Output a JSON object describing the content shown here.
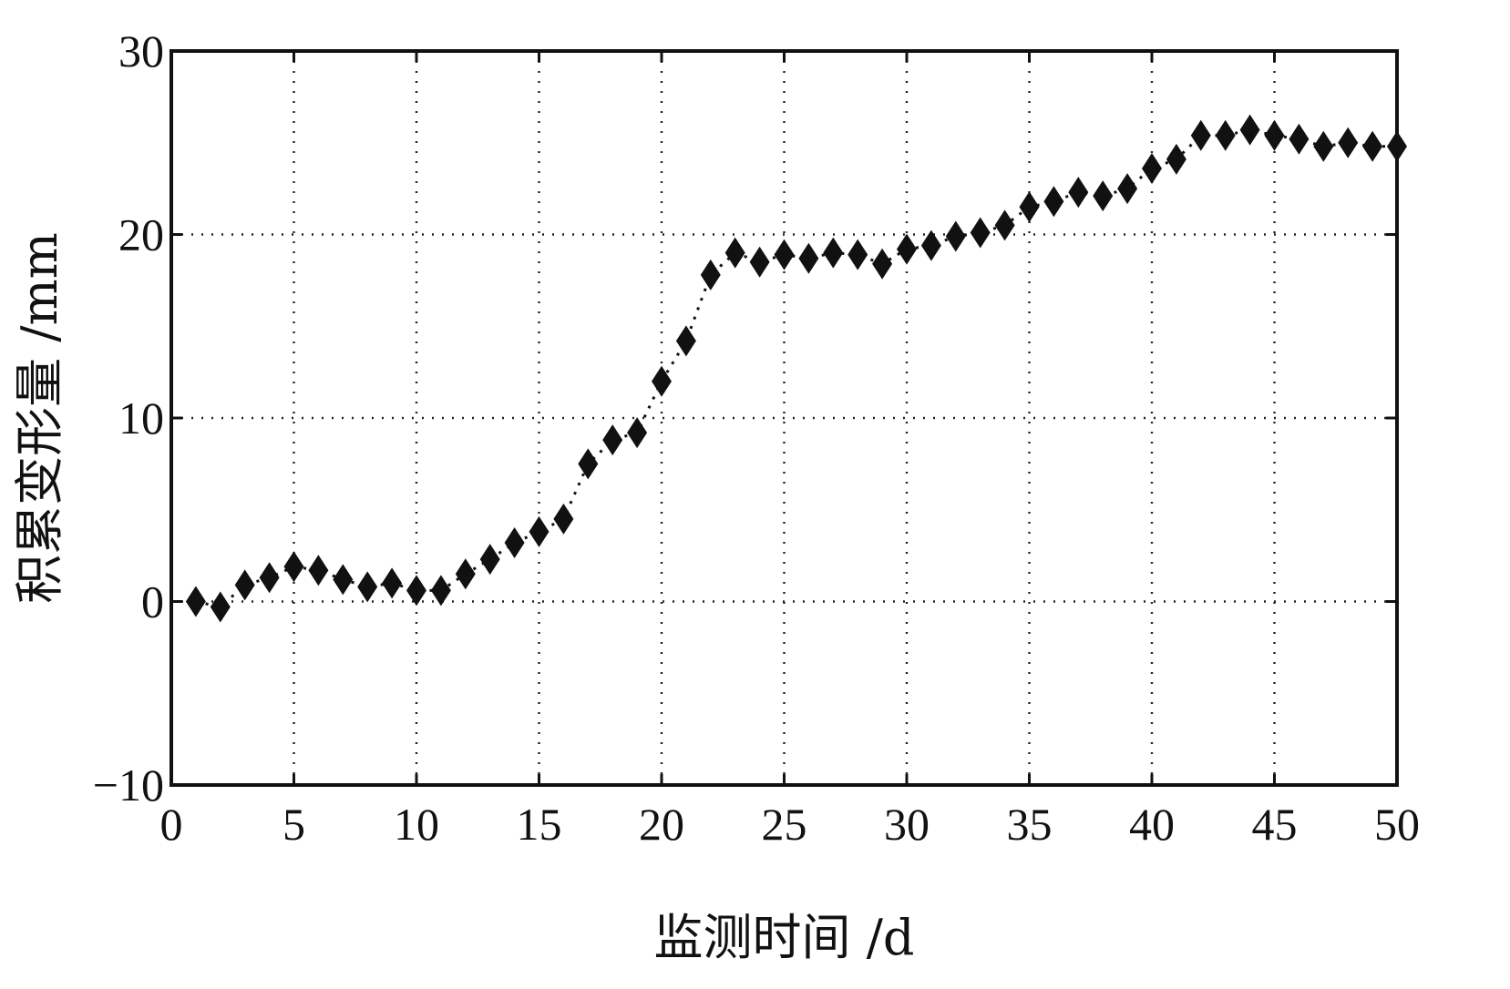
{
  "chart_data": {
    "type": "line",
    "title": "",
    "xlabel": "监测时间 /d",
    "ylabel": "积累变形量 /mm",
    "xlim": [
      0,
      50
    ],
    "ylim": [
      -10,
      30
    ],
    "xticks": [
      0,
      5,
      10,
      15,
      20,
      25,
      30,
      35,
      40,
      45,
      50
    ],
    "yticks": [
      -10,
      0,
      10,
      20,
      30
    ],
    "xtick_labels": [
      "0",
      "5",
      "10",
      "15",
      "20",
      "25",
      "30",
      "35",
      "40",
      "45",
      "50"
    ],
    "ytick_labels": [
      "−10",
      "0",
      "10",
      "20",
      "30"
    ],
    "grid": true,
    "legend": "none",
    "marker": "diamond",
    "line_style": "dotted",
    "color": "#111111",
    "series": [
      {
        "x": [
          1,
          2,
          3,
          4,
          5,
          6,
          7,
          8,
          9,
          10,
          11,
          12,
          13,
          14,
          15,
          16,
          17,
          18,
          19,
          20,
          21,
          22,
          23,
          24,
          25,
          26,
          27,
          28,
          29,
          30,
          31,
          32,
          33,
          34,
          35,
          36,
          37,
          38,
          39,
          40,
          41,
          42,
          43,
          44,
          45,
          46,
          47,
          48,
          49,
          50
        ],
        "values": [
          0.0,
          -0.3,
          0.9,
          1.3,
          1.9,
          1.7,
          1.2,
          0.8,
          1.0,
          0.6,
          0.6,
          1.5,
          2.3,
          3.2,
          3.8,
          4.5,
          7.5,
          8.8,
          9.2,
          12.0,
          14.2,
          17.8,
          19.0,
          18.5,
          18.9,
          18.7,
          19.0,
          18.9,
          18.4,
          19.2,
          19.4,
          19.9,
          20.1,
          20.5,
          21.5,
          21.8,
          22.3,
          22.1,
          22.5,
          23.6,
          24.1,
          25.4,
          25.4,
          25.7,
          25.4,
          25.2,
          24.8,
          25.0,
          24.8,
          24.8
        ]
      }
    ]
  }
}
